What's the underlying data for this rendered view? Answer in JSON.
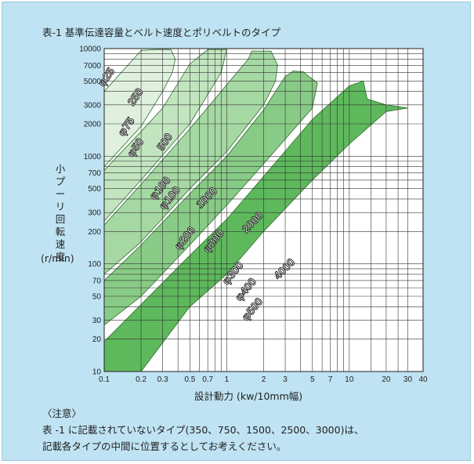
{
  "title": "表-1 基準伝達容量とベルト速度とポリベルトのタイプ",
  "chart_data": {
    "type": "area",
    "xscale": "log",
    "yscale": "log",
    "xlim": [
      0.1,
      40
    ],
    "ylim": [
      10,
      10000
    ],
    "grid": true,
    "xticks": [
      "0.1",
      "0.2",
      "0.3",
      "0.5",
      "0.7",
      "1",
      "2",
      "3",
      "5",
      "7",
      "10",
      "20",
      "30",
      "40"
    ],
    "xtick_values": [
      0.1,
      0.2,
      0.3,
      0.5,
      0.7,
      1,
      2,
      3,
      5,
      7,
      10,
      20,
      30,
      40
    ],
    "yticks": [
      "10",
      "20",
      "30",
      "50",
      "70",
      "100",
      "200",
      "300",
      "500",
      "700",
      "1000",
      "2000",
      "3000",
      "5000",
      "7000",
      "10000"
    ],
    "ytick_values": [
      10,
      20,
      30,
      50,
      70,
      100,
      200,
      300,
      500,
      700,
      1000,
      2000,
      3000,
      5000,
      7000,
      10000
    ],
    "xlabel": "設計動力 (kw/10mm幅)",
    "ylabel": "小プーリ回転速度",
    "yunit": "(r/min)",
    "series": [
      {
        "name": "250",
        "color": "#dff1de",
        "upper": [
          [
            0.1,
            4000
          ],
          [
            0.2,
            9600
          ],
          [
            0.26,
            9800
          ]
        ],
        "lower": [
          [
            0.1,
            800
          ],
          [
            0.2,
            1900
          ],
          [
            0.3,
            4000
          ],
          [
            0.36,
            6000
          ],
          [
            0.38,
            8000
          ],
          [
            0.35,
            9800
          ]
        ]
      },
      {
        "name": "500",
        "color": "#c2e5c0",
        "upper": [
          [
            0.1,
            740
          ],
          [
            0.2,
            1700
          ],
          [
            0.3,
            2800
          ],
          [
            0.5,
            7200
          ],
          [
            0.7,
            9800
          ]
        ],
        "lower": [
          [
            0.1,
            250
          ],
          [
            0.2,
            600
          ],
          [
            0.5,
            2000
          ],
          [
            0.9,
            6000
          ],
          [
            1.0,
            9800
          ]
        ]
      },
      {
        "name": "1000",
        "color": "#a5d8a3",
        "upper": [
          [
            0.1,
            230
          ],
          [
            0.2,
            550
          ],
          [
            0.5,
            1800
          ],
          [
            1.5,
            8000
          ],
          [
            1.6,
            9500
          ]
        ],
        "lower": [
          [
            0.1,
            80
          ],
          [
            0.2,
            160
          ],
          [
            0.5,
            500
          ],
          [
            1.0,
            1100
          ],
          [
            2.0,
            3000
          ],
          [
            2.5,
            5000
          ],
          [
            2.6,
            7000
          ],
          [
            2.3,
            9500
          ]
        ]
      },
      {
        "name": "2000",
        "color": "#88cb86",
        "upper": [
          [
            0.1,
            70
          ],
          [
            0.2,
            150
          ],
          [
            0.5,
            450
          ],
          [
            1.0,
            1000
          ],
          [
            2.0,
            2700
          ],
          [
            3.0,
            5500
          ],
          [
            3.5,
            6200
          ]
        ],
        "lower": [
          [
            0.1,
            27
          ],
          [
            0.2,
            50
          ],
          [
            0.5,
            150
          ],
          [
            1.0,
            350
          ],
          [
            2.0,
            850
          ],
          [
            5.0,
            2800
          ],
          [
            5.5,
            4800
          ],
          [
            4.7,
            5500
          ],
          [
            4.2,
            6100
          ]
        ]
      },
      {
        "name": "4000",
        "color": "#5eb85c",
        "upper": [
          [
            0.1,
            19
          ],
          [
            0.2,
            42
          ],
          [
            0.5,
            120
          ],
          [
            1.0,
            260
          ],
          [
            2.0,
            650
          ],
          [
            5.0,
            2200
          ],
          [
            10,
            4500
          ],
          [
            13,
            5000
          ]
        ],
        "lower": [
          [
            0.1,
            10
          ],
          [
            0.2,
            10
          ],
          [
            0.5,
            40
          ],
          [
            1.0,
            80
          ],
          [
            2.0,
            200
          ],
          [
            5.0,
            600
          ],
          [
            10,
            1300
          ],
          [
            20,
            2600
          ],
          [
            30,
            2800
          ],
          [
            20,
            3000
          ],
          [
            14,
            3400
          ],
          [
            13,
            5000
          ]
        ]
      }
    ],
    "annotations": [
      {
        "text": "φ25",
        "x": 0.11,
        "y": 5200,
        "angle": -55
      },
      {
        "text": "250",
        "x": 0.19,
        "y": 3400,
        "angle": -55
      },
      {
        "text": "φ75",
        "x": 0.16,
        "y": 1800,
        "angle": -55
      },
      {
        "text": "φ50",
        "x": 0.19,
        "y": 1150,
        "angle": -55
      },
      {
        "text": "500",
        "x": 0.33,
        "y": 1300,
        "angle": -55
      },
      {
        "text": "φ100",
        "x": 0.3,
        "y": 480,
        "angle": -50
      },
      {
        "text": "φ100",
        "x": 0.36,
        "y": 390,
        "angle": -50
      },
      {
        "text": "1000",
        "x": 0.72,
        "y": 390,
        "angle": -45
      },
      {
        "text": "φ200",
        "x": 0.48,
        "y": 165,
        "angle": -50
      },
      {
        "text": "φ200",
        "x": 0.82,
        "y": 155,
        "angle": -50
      },
      {
        "text": "2000",
        "x": 1.7,
        "y": 230,
        "angle": -45
      },
      {
        "text": "φ300",
        "x": 1.18,
        "y": 78,
        "angle": -50
      },
      {
        "text": "φ400",
        "x": 1.5,
        "y": 55,
        "angle": -50
      },
      {
        "text": "4000",
        "x": 3.1,
        "y": 85,
        "angle": -45
      },
      {
        "text": "φ500",
        "x": 1.7,
        "y": 36,
        "angle": -50
      }
    ]
  },
  "notes": {
    "heading": "〈注意〉",
    "line1": "表 -1 に記載されていないタイプ(350、750、1500、2500、3000)は、",
    "line2": "記載各タイプの中間に位置するとしてお考えください。"
  },
  "ylabel_chars": [
    "小",
    "プ",
    "ー",
    "リ",
    "回",
    "転",
    "速",
    "度"
  ]
}
